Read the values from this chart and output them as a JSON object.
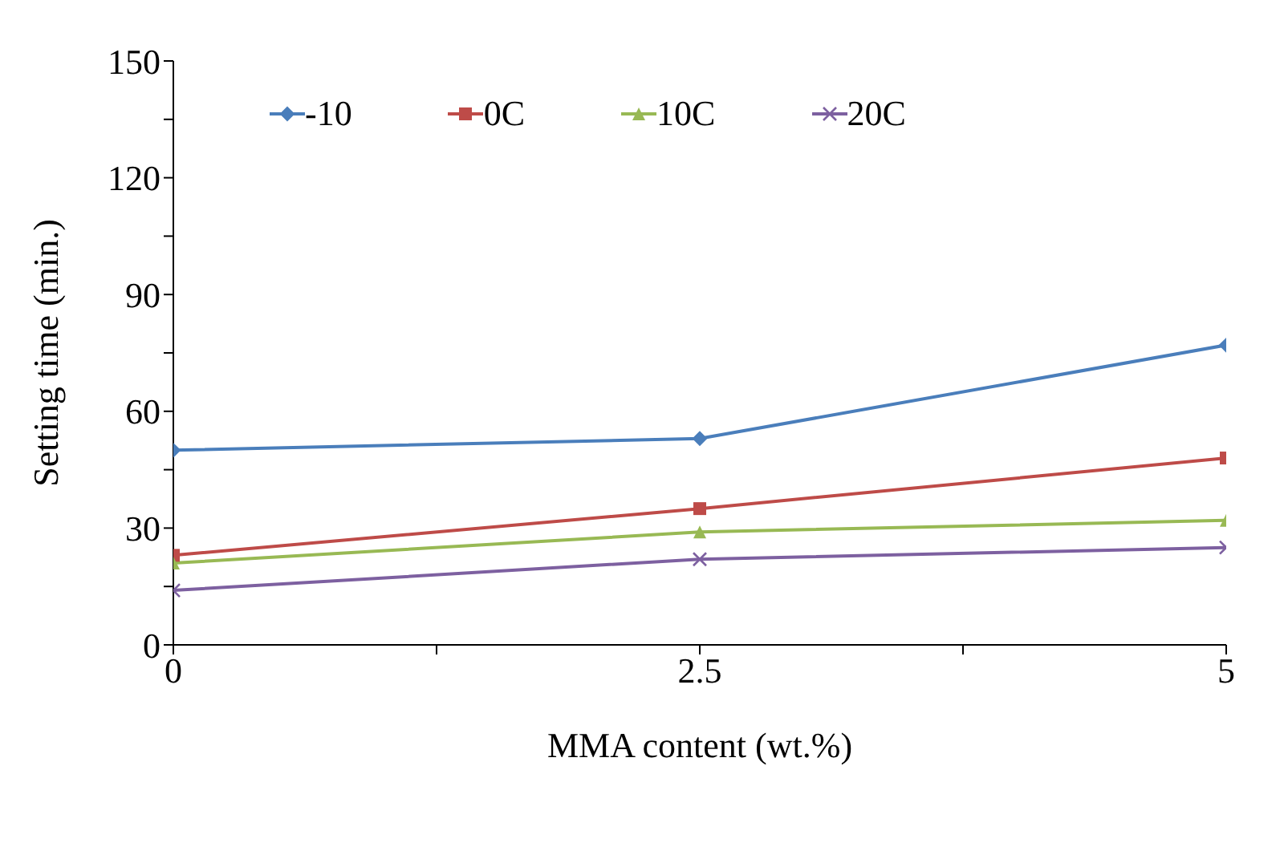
{
  "chart_data": {
    "type": "line",
    "xlabel": "MMA content (wt.%)",
    "ylabel": "Setting time (min.)",
    "x": [
      0,
      2.5,
      5
    ],
    "xlim": [
      0,
      5
    ],
    "xticks": [
      0,
      {
        "value": 1.25,
        "label": null
      },
      2.5,
      {
        "value": 3.75,
        "label": null
      },
      5
    ],
    "ylim": [
      0,
      150
    ],
    "yticks": [
      0,
      {
        "value": 15,
        "label": null
      },
      30,
      {
        "value": 45,
        "label": null
      },
      60,
      {
        "value": 75,
        "label": null
      },
      90,
      {
        "value": 105,
        "label": null
      },
      120,
      {
        "value": 135,
        "label": null
      },
      150
    ],
    "grid": false,
    "legend": "top",
    "series": [
      {
        "name": "-10",
        "color": "#4a7ebb",
        "marker": "diamond",
        "values": [
          50,
          53,
          77
        ]
      },
      {
        "name": "0C",
        "color": "#be4b48",
        "marker": "square",
        "values": [
          23,
          35,
          48
        ]
      },
      {
        "name": "10C",
        "color": "#98b954",
        "marker": "triangle",
        "values": [
          21,
          29,
          32
        ]
      },
      {
        "name": "20C",
        "color": "#7d60a0",
        "marker": "cross",
        "values": [
          14,
          22,
          25
        ]
      }
    ]
  }
}
